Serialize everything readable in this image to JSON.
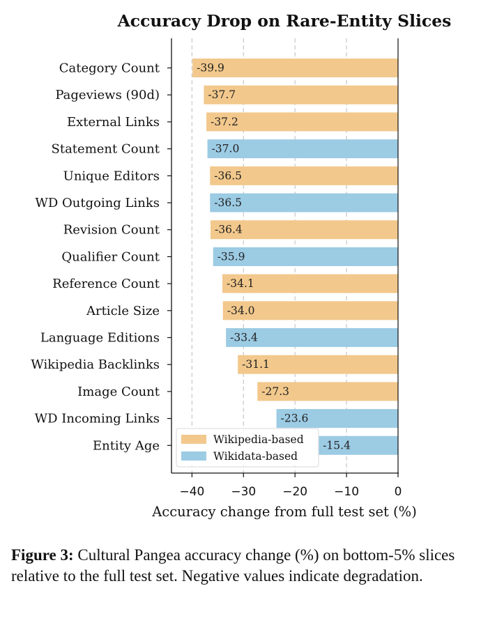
{
  "chart_data": {
    "type": "bar",
    "orientation": "horizontal",
    "title": "Accuracy Drop on Rare-Entity Slices",
    "xlabel": "Accuracy change from full test set (%)",
    "ylabel": "",
    "xlim": [
      -44,
      0
    ],
    "xticks": [
      -40,
      -30,
      -20,
      -10,
      0
    ],
    "xtick_labels": [
      "−40",
      "−30",
      "−20",
      "−10",
      "0"
    ],
    "grid": "vertical dashed",
    "legend_position": "lower-left",
    "colors": {
      "Wikipedia-based": "#f2c88c",
      "Wikidata-based": "#9ccbe4"
    },
    "series": [
      {
        "name": "Wikipedia-based"
      },
      {
        "name": "Wikidata-based"
      }
    ],
    "bars": [
      {
        "category": "Category Count",
        "value": -39.9,
        "label": "-39.9",
        "group": "Wikipedia-based"
      },
      {
        "category": "Pageviews (90d)",
        "value": -37.7,
        "label": "-37.7",
        "group": "Wikipedia-based"
      },
      {
        "category": "External Links",
        "value": -37.2,
        "label": "-37.2",
        "group": "Wikipedia-based"
      },
      {
        "category": "Statement Count",
        "value": -37.0,
        "label": "-37.0",
        "group": "Wikidata-based"
      },
      {
        "category": "Unique Editors",
        "value": -36.5,
        "label": "-36.5",
        "group": "Wikipedia-based"
      },
      {
        "category": "WD Outgoing Links",
        "value": -36.5,
        "label": "-36.5",
        "group": "Wikidata-based"
      },
      {
        "category": "Revision Count",
        "value": -36.4,
        "label": "-36.4",
        "group": "Wikipedia-based"
      },
      {
        "category": "Qualifier Count",
        "value": -35.9,
        "label": "-35.9",
        "group": "Wikidata-based"
      },
      {
        "category": "Reference Count",
        "value": -34.1,
        "label": "-34.1",
        "group": "Wikipedia-based"
      },
      {
        "category": "Article Size",
        "value": -34.0,
        "label": "-34.0",
        "group": "Wikipedia-based"
      },
      {
        "category": "Language Editions",
        "value": -33.4,
        "label": "-33.4",
        "group": "Wikidata-based"
      },
      {
        "category": "Wikipedia Backlinks",
        "value": -31.1,
        "label": "-31.1",
        "group": "Wikipedia-based"
      },
      {
        "category": "Image Count",
        "value": -27.3,
        "label": "-27.3",
        "group": "Wikipedia-based"
      },
      {
        "category": "WD Incoming Links",
        "value": -23.6,
        "label": "-23.6",
        "group": "Wikidata-based"
      },
      {
        "category": "Entity Age",
        "value": -15.4,
        "label": "-15.4",
        "group": "Wikidata-based"
      }
    ]
  },
  "caption": {
    "label": "Figure 3:",
    "text": "Cultural Pangea accuracy change (%) on bottom-5% slices relative to the full test set. Negative values indicate degradation."
  }
}
